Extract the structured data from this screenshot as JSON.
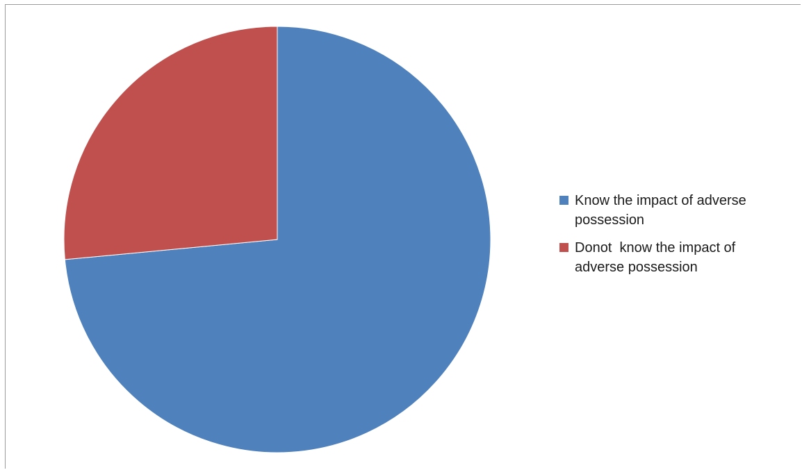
{
  "chart_data": {
    "type": "pie",
    "title": "",
    "categories": [
      "Know the impact of adverse possession",
      "Donot  know the impact of adverse possession"
    ],
    "values": [
      73.5,
      26.5
    ],
    "colors": [
      "#4F81BD",
      "#C0504D"
    ],
    "legend_position": "right"
  }
}
